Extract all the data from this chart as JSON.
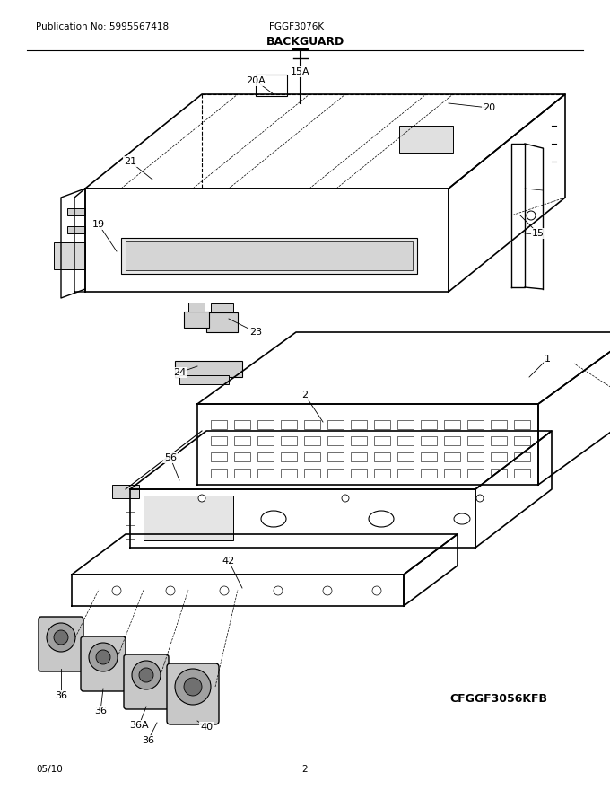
{
  "pub_no": "Publication No: 5995567418",
  "model": "FGGF3076K",
  "title": "BACKGUARD",
  "date": "05/10",
  "page": "2",
  "ref_model": "CFGGF3056KFB",
  "bg_color": "#ffffff"
}
